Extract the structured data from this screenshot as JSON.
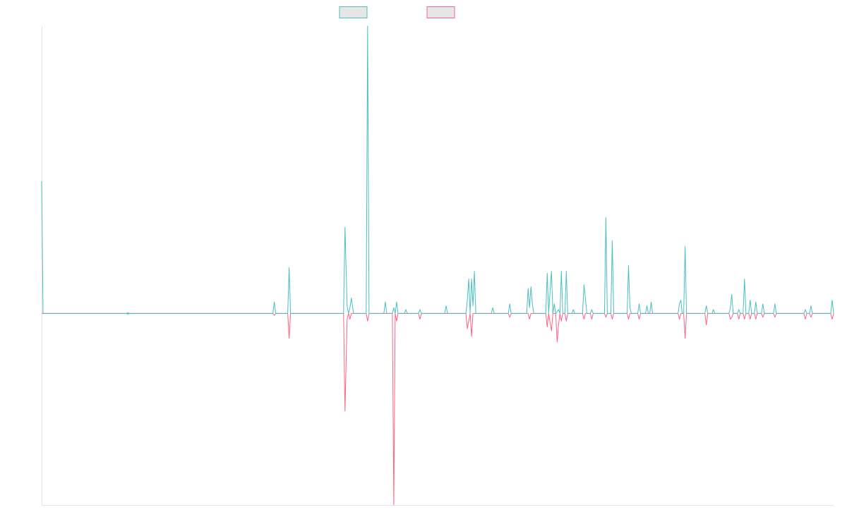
{
  "chart_data": {
    "type": "line",
    "title": "",
    "xlabel": "",
    "ylabel": "",
    "grid": false,
    "legend_position": "top-center",
    "ylim": [
      -100,
      150
    ],
    "colors": {
      "series_a": "#4bc0c0",
      "series_b": "#ff6384"
    },
    "series": [
      {
        "key": "series_a",
        "color": "#4bc0c0",
        "points": [
          [
            0,
            69
          ],
          [
            2,
            0
          ],
          [
            300,
            0
          ],
          [
            327,
            0
          ],
          [
            329,
            6
          ],
          [
            331,
            0
          ],
          [
            348,
            0
          ],
          [
            350,
            24
          ],
          [
            352,
            0
          ],
          [
            427,
            0
          ],
          [
            429,
            45
          ],
          [
            432,
            4
          ],
          [
            434,
            0
          ],
          [
            436,
            3
          ],
          [
            438,
            8
          ],
          [
            441,
            0
          ],
          [
            459,
            0
          ],
          [
            461,
            150
          ],
          [
            463,
            0
          ],
          [
            484,
            0
          ],
          [
            486,
            6
          ],
          [
            488,
            0
          ],
          [
            496,
            0
          ],
          [
            498,
            3
          ],
          [
            500,
            0
          ],
          [
            502,
            6
          ],
          [
            504,
            0
          ],
          [
            513,
            0
          ],
          [
            515,
            2
          ],
          [
            517,
            0
          ],
          [
            533,
            0
          ],
          [
            535,
            2
          ],
          [
            537,
            0
          ],
          [
            570,
            0
          ],
          [
            572,
            4
          ],
          [
            574,
            0
          ],
          [
            600,
            0
          ],
          [
            602,
            7
          ],
          [
            604,
            18
          ],
          [
            606,
            0
          ],
          [
            608,
            18
          ],
          [
            610,
            4
          ],
          [
            612,
            22
          ],
          [
            614,
            0
          ],
          [
            636,
            0
          ],
          [
            638,
            3
          ],
          [
            640,
            0
          ],
          [
            660,
            0
          ],
          [
            662,
            5
          ],
          [
            664,
            0
          ],
          [
            686,
            0
          ],
          [
            688,
            13
          ],
          [
            690,
            3
          ],
          [
            692,
            14
          ],
          [
            694,
            5
          ],
          [
            696,
            0
          ],
          [
            713,
            0
          ],
          [
            715,
            21
          ],
          [
            717,
            0
          ],
          [
            721,
            22
          ],
          [
            723,
            0
          ],
          [
            725,
            5
          ],
          [
            727,
            0
          ],
          [
            729,
            1
          ],
          [
            731,
            2
          ],
          [
            733,
            0
          ],
          [
            735,
            22
          ],
          [
            737,
            0
          ],
          [
            740,
            0
          ],
          [
            742,
            22
          ],
          [
            744,
            0
          ],
          [
            750,
            0
          ],
          [
            752,
            2
          ],
          [
            754,
            0
          ],
          [
            765,
            0
          ],
          [
            767,
            15
          ],
          [
            769,
            8
          ],
          [
            771,
            0
          ],
          [
            776,
            0
          ],
          [
            778,
            2
          ],
          [
            780,
            0
          ],
          [
            796,
            0
          ],
          [
            798,
            50
          ],
          [
            800,
            0
          ],
          [
            805,
            0
          ],
          [
            807,
            38
          ],
          [
            809,
            0
          ],
          [
            828,
            0
          ],
          [
            830,
            25
          ],
          [
            832,
            3
          ],
          [
            834,
            0
          ],
          [
            843,
            0
          ],
          [
            845,
            5
          ],
          [
            847,
            0
          ],
          [
            854,
            0
          ],
          [
            856,
            4
          ],
          [
            858,
            0
          ],
          [
            860,
            0
          ],
          [
            862,
            6
          ],
          [
            864,
            0
          ],
          [
            900,
            0
          ],
          [
            902,
            5
          ],
          [
            904,
            7
          ],
          [
            906,
            0
          ],
          [
            908,
            0
          ],
          [
            910,
            35
          ],
          [
            912,
            0
          ],
          [
            938,
            0
          ],
          [
            940,
            4
          ],
          [
            942,
            0
          ],
          [
            948,
            0
          ],
          [
            950,
            2
          ],
          [
            952,
            0
          ],
          [
            972,
            0
          ],
          [
            974,
            3
          ],
          [
            976,
            10
          ],
          [
            978,
            0
          ],
          [
            984,
            0
          ],
          [
            986,
            2
          ],
          [
            988,
            0
          ],
          [
            992,
            0
          ],
          [
            994,
            18
          ],
          [
            996,
            0
          ],
          [
            1000,
            0
          ],
          [
            1002,
            7
          ],
          [
            1004,
            0
          ],
          [
            1008,
            0
          ],
          [
            1010,
            6
          ],
          [
            1012,
            0
          ],
          [
            1018,
            0
          ],
          [
            1020,
            5
          ],
          [
            1022,
            0
          ],
          [
            1035,
            0
          ],
          [
            1037,
            5
          ],
          [
            1039,
            0
          ],
          [
            1078,
            0
          ],
          [
            1080,
            2
          ],
          [
            1082,
            0
          ],
          [
            1086,
            0
          ],
          [
            1088,
            4
          ],
          [
            1090,
            0
          ],
          [
            1116,
            0
          ],
          [
            1118,
            7
          ],
          [
            1120,
            0
          ]
        ]
      },
      {
        "key": "series_b",
        "color": "#ff6384",
        "points": [
          [
            0,
            0
          ],
          [
            300,
            0
          ],
          [
            327,
            0
          ],
          [
            329,
            -1
          ],
          [
            331,
            0
          ],
          [
            348,
            0
          ],
          [
            350,
            -13
          ],
          [
            352,
            0
          ],
          [
            427,
            0
          ],
          [
            429,
            -51
          ],
          [
            432,
            -3
          ],
          [
            434,
            0
          ],
          [
            436,
            -3
          ],
          [
            438,
            0
          ],
          [
            459,
            0
          ],
          [
            461,
            -4
          ],
          [
            463,
            0
          ],
          [
            496,
            0
          ],
          [
            498,
            -100
          ],
          [
            500,
            0
          ],
          [
            502,
            -4
          ],
          [
            504,
            0
          ],
          [
            533,
            0
          ],
          [
            535,
            -3
          ],
          [
            537,
            0
          ],
          [
            600,
            0
          ],
          [
            602,
            -8
          ],
          [
            604,
            -4
          ],
          [
            606,
            0
          ],
          [
            608,
            -12
          ],
          [
            610,
            0
          ],
          [
            660,
            0
          ],
          [
            662,
            -2
          ],
          [
            664,
            0
          ],
          [
            688,
            0
          ],
          [
            690,
            -3
          ],
          [
            692,
            0
          ],
          [
            713,
            0
          ],
          [
            715,
            -7
          ],
          [
            717,
            0
          ],
          [
            721,
            -9
          ],
          [
            723,
            0
          ],
          [
            727,
            0
          ],
          [
            729,
            -15
          ],
          [
            731,
            -6
          ],
          [
            733,
            0
          ],
          [
            735,
            -4
          ],
          [
            737,
            0
          ],
          [
            740,
            0
          ],
          [
            742,
            -4
          ],
          [
            744,
            0
          ],
          [
            765,
            0
          ],
          [
            767,
            -3
          ],
          [
            769,
            0
          ],
          [
            776,
            0
          ],
          [
            778,
            -3
          ],
          [
            780,
            0
          ],
          [
            796,
            0
          ],
          [
            798,
            -2
          ],
          [
            800,
            0
          ],
          [
            805,
            0
          ],
          [
            807,
            -3
          ],
          [
            809,
            0
          ],
          [
            828,
            0
          ],
          [
            830,
            -3
          ],
          [
            832,
            0
          ],
          [
            843,
            0
          ],
          [
            845,
            -3
          ],
          [
            847,
            0
          ],
          [
            900,
            0
          ],
          [
            902,
            -3
          ],
          [
            904,
            0
          ],
          [
            908,
            0
          ],
          [
            910,
            -13
          ],
          [
            912,
            0
          ],
          [
            938,
            0
          ],
          [
            940,
            -6
          ],
          [
            942,
            0
          ],
          [
            972,
            0
          ],
          [
            974,
            -3
          ],
          [
            976,
            -2
          ],
          [
            978,
            0
          ],
          [
            984,
            0
          ],
          [
            986,
            -3
          ],
          [
            988,
            0
          ],
          [
            992,
            0
          ],
          [
            994,
            -3
          ],
          [
            996,
            0
          ],
          [
            1000,
            0
          ],
          [
            1002,
            -3
          ],
          [
            1004,
            0
          ],
          [
            1008,
            0
          ],
          [
            1010,
            -3
          ],
          [
            1012,
            0
          ],
          [
            1018,
            0
          ],
          [
            1020,
            -2
          ],
          [
            1022,
            0
          ],
          [
            1035,
            0
          ],
          [
            1037,
            -2
          ],
          [
            1039,
            0
          ],
          [
            1078,
            0
          ],
          [
            1080,
            -3
          ],
          [
            1082,
            0
          ],
          [
            1086,
            0
          ],
          [
            1088,
            -2
          ],
          [
            1090,
            0
          ],
          [
            1116,
            0
          ],
          [
            1118,
            -3
          ],
          [
            1120,
            0
          ]
        ]
      }
    ]
  }
}
